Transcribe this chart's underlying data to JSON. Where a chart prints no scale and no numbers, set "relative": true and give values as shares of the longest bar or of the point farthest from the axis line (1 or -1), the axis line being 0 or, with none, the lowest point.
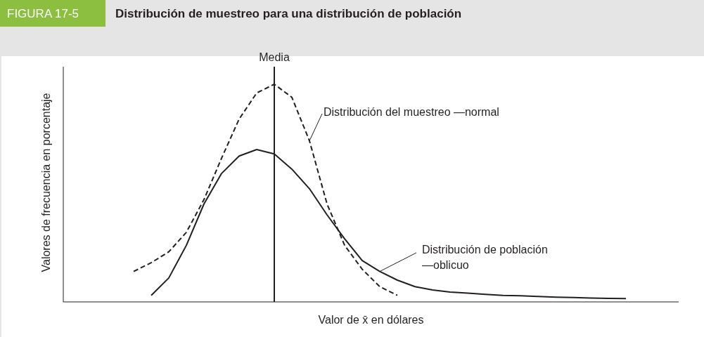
{
  "chart_data": {
    "type": "line",
    "relative": true,
    "title": "Distribución de muestreo para una distribución de población",
    "annotations": [
      "FIGURA 17-5",
      "Media"
    ],
    "xlabel": "Valor de x̄ en dólares",
    "ylabel": "Valores de frecuencia en porcentaje",
    "grid": false,
    "categories": [
      null,
      null,
      null,
      null,
      null,
      null,
      null,
      null,
      null,
      null,
      null,
      null,
      null,
      null,
      null,
      null,
      null,
      null,
      null,
      null,
      null,
      null,
      null,
      null,
      null,
      null,
      null,
      null,
      null,
      null,
      null,
      null,
      null,
      null,
      null,
      null
    ],
    "series": [
      {
        "name": "Distribución del muestreo —normal",
        "color": "#231f20",
        "line_style": "dashed",
        "values": [
          null,
          null,
          null,
          null,
          0.14,
          0.18,
          0.23,
          0.32,
          0.47,
          0.66,
          0.84,
          0.96,
          1.0,
          0.94,
          0.74,
          0.45,
          0.26,
          0.15,
          0.07,
          0.03,
          null,
          null,
          null,
          null,
          null,
          null,
          null,
          null,
          null,
          null,
          null,
          null,
          null,
          null,
          null,
          null
        ]
      },
      {
        "name": "Distribución de población\n—oblicuo",
        "color": "#231f20",
        "line_style": "solid",
        "values": [
          null,
          null,
          null,
          null,
          null,
          0.03,
          0.11,
          0.26,
          0.45,
          0.59,
          0.67,
          0.7,
          0.68,
          0.61,
          0.52,
          0.4,
          0.29,
          0.19,
          0.14,
          0.1,
          0.07,
          0.055,
          0.045,
          0.04,
          0.035,
          0.03,
          0.028,
          0.025,
          0.022,
          0.02,
          0.018,
          0.016,
          0.015,
          null,
          null,
          null
        ]
      }
    ]
  }
}
